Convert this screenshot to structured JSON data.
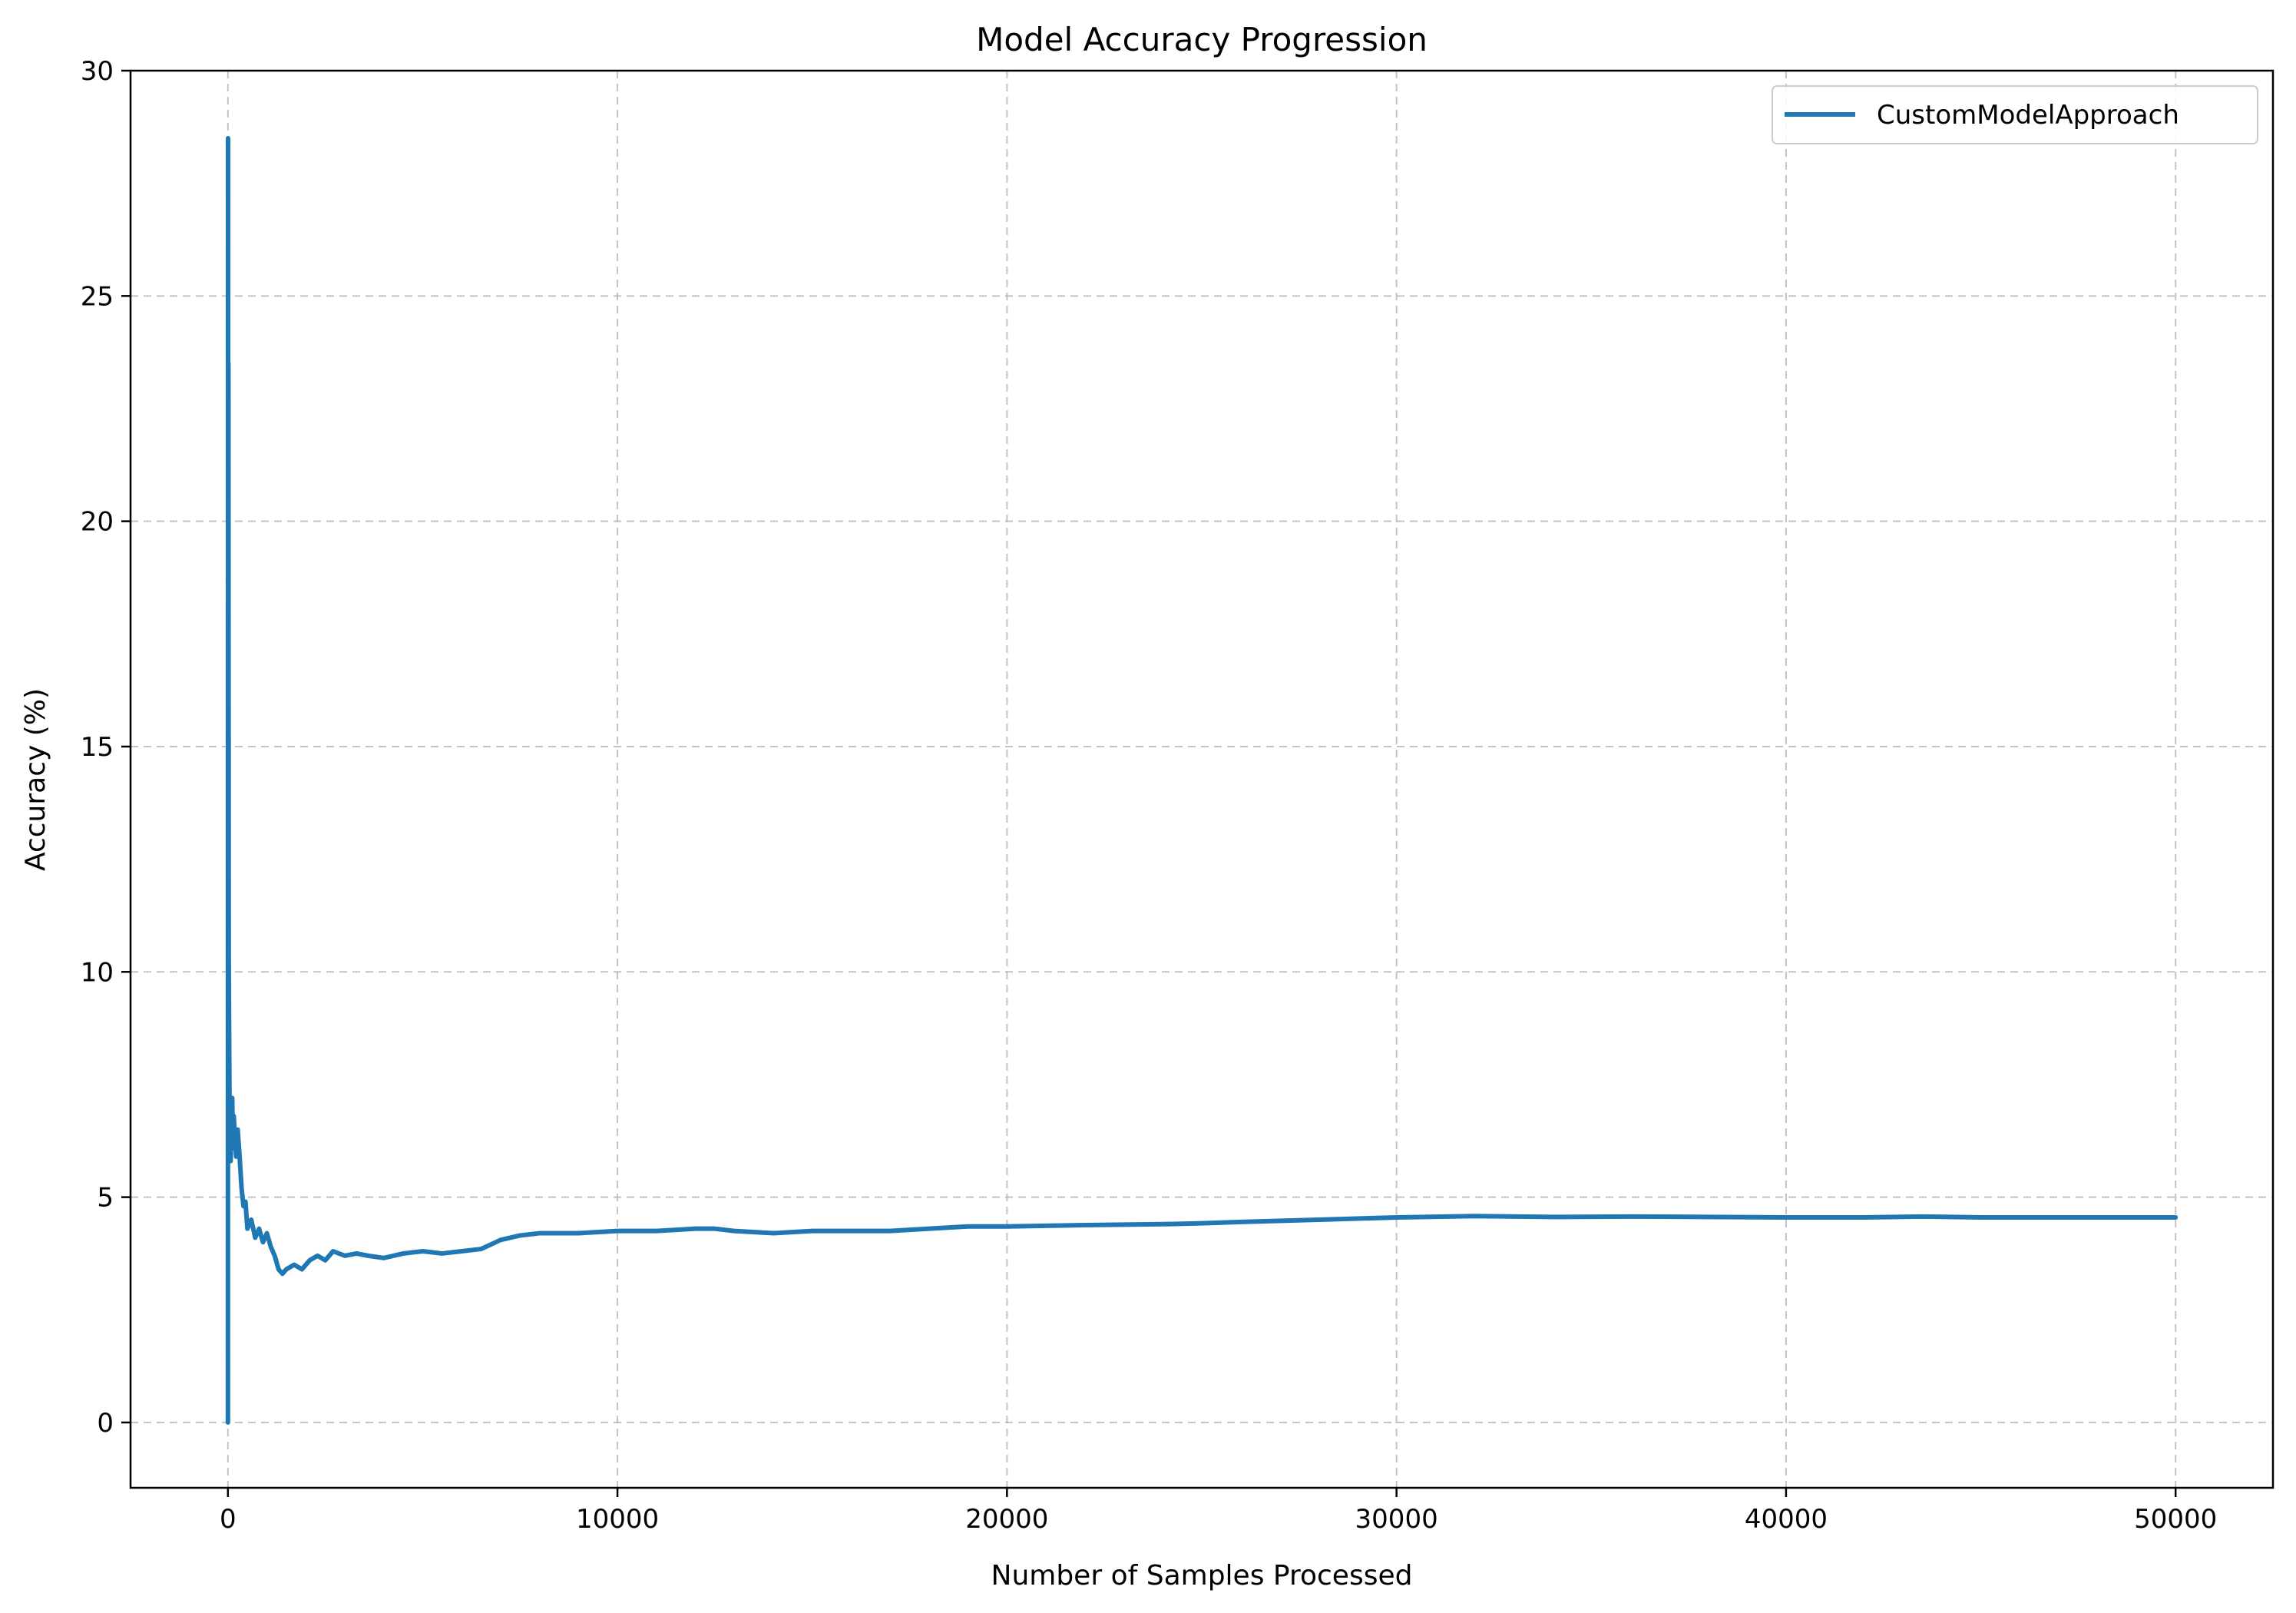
{
  "chart_data": {
    "type": "line",
    "title": "Model Accuracy Progression",
    "xlabel": "Number of Samples Processed",
    "ylabel": "Accuracy (%)",
    "xlim": [
      -2500,
      52500
    ],
    "ylim": [
      -1.45,
      30
    ],
    "xticks": [
      0,
      10000,
      20000,
      30000,
      40000,
      50000
    ],
    "yticks": [
      0,
      5,
      10,
      15,
      20,
      25,
      30
    ],
    "grid": true,
    "legend_position": "top-right",
    "series": [
      {
        "name": "CustomModelApproach",
        "color": "#1f77b4",
        "x": [
          0,
          3,
          7,
          12,
          20,
          30,
          40,
          55,
          70,
          90,
          110,
          130,
          150,
          180,
          210,
          250,
          300,
          350,
          400,
          450,
          500,
          600,
          700,
          800,
          900,
          1000,
          1100,
          1200,
          1300,
          1400,
          1500,
          1700,
          1900,
          2100,
          2300,
          2500,
          2700,
          3000,
          3300,
          3600,
          4000,
          4500,
          5000,
          5500,
          6000,
          6500,
          7000,
          7500,
          8000,
          8500,
          9000,
          10000,
          11000,
          12000,
          12500,
          13000,
          14000,
          15000,
          16000,
          17000,
          18000,
          19000,
          20000,
          22000,
          24000,
          25000,
          26000,
          28000,
          30000,
          32000,
          34000,
          36000,
          38000,
          40000,
          42000,
          43500,
          45000,
          47000,
          50000
        ],
        "y": [
          0,
          28.5,
          16.7,
          23.5,
          10.4,
          8.7,
          7.2,
          6.5,
          5.8,
          6.9,
          7.2,
          6.1,
          6.8,
          6.3,
          5.9,
          6.5,
          5.9,
          5.2,
          4.8,
          4.9,
          4.3,
          4.5,
          4.1,
          4.3,
          4.0,
          4.2,
          3.9,
          3.7,
          3.4,
          3.3,
          3.4,
          3.5,
          3.4,
          3.6,
          3.7,
          3.6,
          3.8,
          3.7,
          3.75,
          3.7,
          3.65,
          3.75,
          3.8,
          3.75,
          3.8,
          3.85,
          4.05,
          4.15,
          4.2,
          4.2,
          4.2,
          4.25,
          4.25,
          4.3,
          4.3,
          4.25,
          4.2,
          4.25,
          4.25,
          4.25,
          4.3,
          4.35,
          4.35,
          4.38,
          4.4,
          4.42,
          4.45,
          4.5,
          4.55,
          4.58,
          4.56,
          4.57,
          4.56,
          4.55,
          4.55,
          4.57,
          4.55,
          4.55,
          4.55
        ]
      }
    ]
  }
}
